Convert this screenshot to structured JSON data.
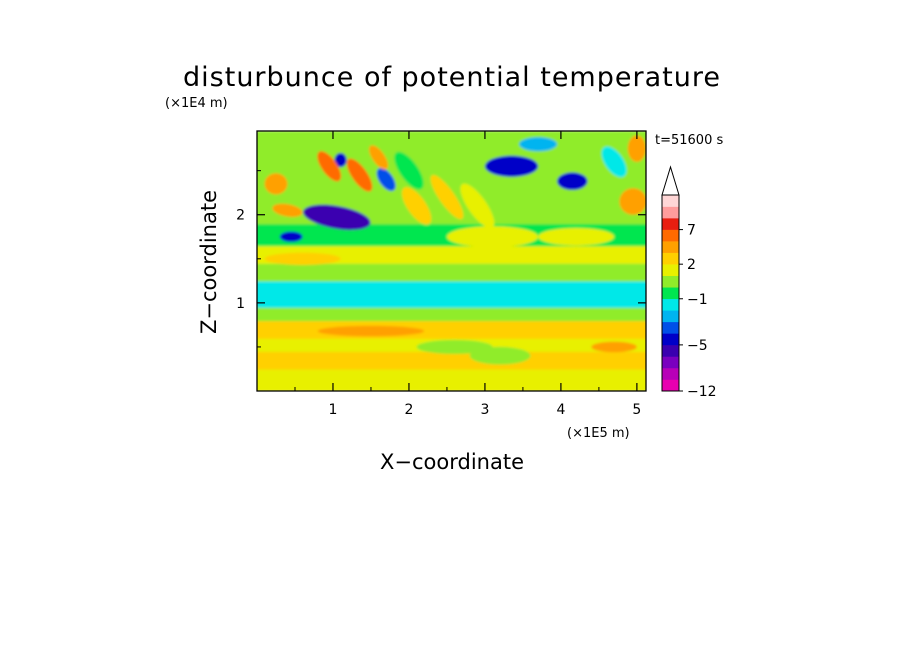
{
  "chart_data": {
    "type": "heatmap",
    "title": "disturbunce of potential temperature",
    "xlabel": "X−coordinate",
    "ylabel": "Z−coordinate",
    "x_unit": "(×1E5 m)",
    "y_unit": "(×1E4 m)",
    "time_label": "t=51600 s",
    "xlim": [
      0,
      5.12
    ],
    "ylim": [
      0,
      2.95
    ],
    "x_ticks": [
      1,
      2,
      3,
      4,
      5
    ],
    "x_tick_labels": [
      "1",
      "2",
      "3",
      "4",
      "5"
    ],
    "y_ticks": [
      1,
      2
    ],
    "y_tick_labels": [
      "1",
      "2"
    ],
    "colorbar": {
      "levels": [
        -12,
        -10,
        -8,
        -6,
        -5,
        -4,
        -3,
        -2,
        -1,
        0,
        1,
        2,
        3,
        5,
        7,
        9,
        11
      ],
      "level_labels": [
        {
          "value": -12,
          "label": "−12"
        },
        {
          "value": -5,
          "label": "−5"
        },
        {
          "value": -1,
          "label": "−1"
        },
        {
          "value": 2,
          "label": "2"
        },
        {
          "value": 7,
          "label": "7"
        }
      ],
      "colors": [
        "#e800b0",
        "#b800b8",
        "#7a00bf",
        "#3a00b0",
        "#0000c8",
        "#0050e8",
        "#00b4f0",
        "#00e8e8",
        "#00e650",
        "#90ec2a",
        "#e8f000",
        "#ffd000",
        "#ffa000",
        "#ff6a00",
        "#e81e10",
        "#ff9c9c",
        "#ffd6d6"
      ],
      "extend_top": true
    },
    "field_bands": [
      {
        "z_range": [
          0.0,
          0.1
        ],
        "value": 1.5
      },
      {
        "z_range": [
          0.1,
          0.25
        ],
        "value": 1.0
      },
      {
        "z_range": [
          0.25,
          0.45
        ],
        "value": 2.2
      },
      {
        "z_range": [
          0.45,
          0.6
        ],
        "value": 1.6
      },
      {
        "z_range": [
          0.6,
          0.8
        ],
        "value": 2.8
      },
      {
        "z_range": [
          0.8,
          0.95
        ],
        "value": 0.5
      },
      {
        "z_range": [
          0.95,
          1.25
        ],
        "value": -1.5
      },
      {
        "z_range": [
          1.25,
          1.45
        ],
        "value": 0.2
      },
      {
        "z_range": [
          1.45,
          1.65
        ],
        "value": 1.2
      },
      {
        "z_range": [
          1.65,
          1.9
        ],
        "value": -0.8
      },
      {
        "z_range": [
          1.9,
          2.95
        ],
        "value": 0.8
      }
    ],
    "features": [
      {
        "x": 1.05,
        "z": 1.97,
        "value": -5.5,
        "rx": 0.45,
        "rz": 0.13,
        "tilt": 10
      },
      {
        "x": 3.35,
        "z": 2.55,
        "value": -5.0,
        "rx": 0.35,
        "rz": 0.12,
        "tilt": 0
      },
      {
        "x": 4.15,
        "z": 2.38,
        "value": -4.5,
        "rx": 0.2,
        "rz": 0.1,
        "tilt": 0
      },
      {
        "x": 0.45,
        "z": 1.75,
        "value": -4.5,
        "rx": 0.15,
        "rz": 0.06,
        "tilt": 0
      },
      {
        "x": 1.1,
        "z": 2.62,
        "value": -4.5,
        "rx": 0.08,
        "rz": 0.08,
        "tilt": 0
      },
      {
        "x": 1.7,
        "z": 2.4,
        "value": -3.5,
        "rx": 0.09,
        "rz": 0.15,
        "tilt": -35
      },
      {
        "x": 3.7,
        "z": 2.8,
        "value": -3.0,
        "rx": 0.25,
        "rz": 0.08,
        "tilt": 0
      },
      {
        "x": 0.95,
        "z": 2.55,
        "value": 5.0,
        "rx": 0.1,
        "rz": 0.2,
        "tilt": -35
      },
      {
        "x": 1.35,
        "z": 2.45,
        "value": 6.0,
        "rx": 0.1,
        "rz": 0.22,
        "tilt": -35
      },
      {
        "x": 1.6,
        "z": 2.65,
        "value": 4.5,
        "rx": 0.08,
        "rz": 0.16,
        "tilt": -35
      },
      {
        "x": 0.25,
        "z": 2.35,
        "value": 3.0,
        "rx": 0.15,
        "rz": 0.12,
        "tilt": 0
      },
      {
        "x": 0.4,
        "z": 2.05,
        "value": 4.0,
        "rx": 0.2,
        "rz": 0.07,
        "tilt": 10
      },
      {
        "x": 2.1,
        "z": 2.1,
        "value": 2.5,
        "rx": 0.12,
        "rz": 0.25,
        "tilt": -35
      },
      {
        "x": 2.5,
        "z": 2.2,
        "value": 2.2,
        "rx": 0.1,
        "rz": 0.3,
        "tilt": -35
      },
      {
        "x": 2.9,
        "z": 2.1,
        "value": 1.8,
        "rx": 0.12,
        "rz": 0.3,
        "tilt": -35
      },
      {
        "x": 3.1,
        "z": 1.75,
        "value": 1.5,
        "rx": 0.6,
        "rz": 0.12,
        "tilt": 0
      },
      {
        "x": 4.2,
        "z": 1.75,
        "value": 1.3,
        "rx": 0.5,
        "rz": 0.1,
        "tilt": 0
      },
      {
        "x": 4.95,
        "z": 2.15,
        "value": 3.0,
        "rx": 0.18,
        "rz": 0.15,
        "tilt": 0
      },
      {
        "x": 5.0,
        "z": 2.75,
        "value": 3.5,
        "rx": 0.12,
        "rz": 0.15,
        "tilt": 0
      },
      {
        "x": 4.7,
        "z": 2.6,
        "value": -1.5,
        "rx": 0.12,
        "rz": 0.2,
        "tilt": -35
      },
      {
        "x": 2.0,
        "z": 2.5,
        "value": -0.5,
        "rx": 0.12,
        "rz": 0.25,
        "tilt": -35
      },
      {
        "x": 0.6,
        "z": 1.5,
        "value": 2.2,
        "rx": 0.5,
        "rz": 0.07,
        "tilt": 0
      },
      {
        "x": 4.7,
        "z": 0.5,
        "value": 3.5,
        "rx": 0.3,
        "rz": 0.06,
        "tilt": 0
      },
      {
        "x": 1.5,
        "z": 0.68,
        "value": 3.5,
        "rx": 0.7,
        "rz": 0.06,
        "tilt": 0
      },
      {
        "x": 2.6,
        "z": 0.5,
        "value": 0.5,
        "rx": 0.5,
        "rz": 0.08,
        "tilt": 0
      },
      {
        "x": 3.2,
        "z": 0.4,
        "value": 0.8,
        "rx": 0.4,
        "rz": 0.1,
        "tilt": 0
      }
    ]
  }
}
